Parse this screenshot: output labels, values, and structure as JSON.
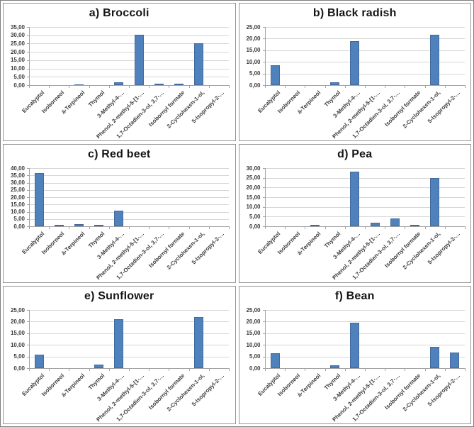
{
  "figure_title": "Volatile compound bar charts by plant species",
  "colors": {
    "bar": "#4f81bd",
    "bar_border": "#44699c",
    "gridline": "#d6d6d6",
    "axis": "#a3a3a3",
    "panel_border": "#969696",
    "outer_border": "#7f7f7f",
    "title_text": "#151515",
    "tick_label_text": "#3d3d3d"
  },
  "chart_data": [
    {
      "type": "bar",
      "panel": "a",
      "title": "a) Broccoli",
      "categories": [
        "Eucalyptol",
        "Isoborneol",
        "á-Terpineol",
        "Thymol",
        "3-Methyl-4-…",
        "Phenol, 2-methyl-5-[1-…",
        "1,7-Octadien-3-ol, 3,7-…",
        "Isobornyl formate",
        "2-Cyclohexen-1-ol,",
        "5-Isopropyl-2-…"
      ],
      "values": [
        0,
        0,
        0.6,
        0,
        1.6,
        30.2,
        0.9,
        0.7,
        25.2,
        0
      ],
      "ylim": [
        0,
        35
      ],
      "ytick_step": 5,
      "yticklabels": [
        "0,00",
        "5,00",
        "10,00",
        "15,00",
        "20,00",
        "25,00",
        "30,00",
        "35,00"
      ],
      "grid": "horizontal",
      "legend": "none"
    },
    {
      "type": "bar",
      "panel": "b",
      "title": "b) Black radish",
      "categories": [
        "Eucalyptol",
        "Isoborneol",
        "á-Terpineol",
        "Thymol",
        "3-Methyl-4-…",
        "Phenol, 2-methyl-5-[1-…",
        "1,7-Octadien-3-ol, 3,7-…",
        "Isobornyl formate",
        "2-Cyclohexen-1-ol,",
        "5-Isopropyl-2-…"
      ],
      "values": [
        8.5,
        0,
        0,
        1.3,
        19.0,
        0,
        0,
        0,
        21.5,
        0
      ],
      "ylim": [
        0,
        25
      ],
      "ytick_step": 5,
      "yticklabels": [
        "0,00",
        "5,00",
        "10,00",
        "15,00",
        "20,00",
        "25,00"
      ],
      "grid": "horizontal",
      "legend": "none"
    },
    {
      "type": "bar",
      "panel": "c",
      "title": "c) Red beet",
      "categories": [
        "Eucalyptol",
        "Isoborneol",
        "á-Terpineol",
        "Thymol",
        "3-Methyl-4-…",
        "Phenol, 2-methyl-5-[1-…",
        "1,7-Octadien-3-ol, 3,7-…",
        "Isobornyl formate",
        "2-Cyclohexen-1-ol,",
        "5-Isopropyl-2-…"
      ],
      "values": [
        36.8,
        1.2,
        1.4,
        1.0,
        10.8,
        0,
        0,
        0,
        0,
        0
      ],
      "ylim": [
        0,
        40
      ],
      "ytick_step": 5,
      "yticklabels": [
        "0,00",
        "5,00",
        "10,00",
        "15,00",
        "20,00",
        "25,00",
        "30,00",
        "35,00",
        "40,00"
      ],
      "grid": "horizontal",
      "legend": "none"
    },
    {
      "type": "bar",
      "panel": "d",
      "title": "d) Pea",
      "categories": [
        "Eucalyptol",
        "Isoborneol",
        "á-Terpineol",
        "Thymol",
        "3-Methyl-4-…",
        "Phenol, 2-methyl-5-[1-…",
        "1,7-Octadien-3-ol, 3,7-…",
        "Isobornyl formate",
        "2-Cyclohexen-1-ol,",
        "5-Isopropyl-2-…"
      ],
      "values": [
        0,
        0,
        0.7,
        0,
        28.1,
        1.7,
        4.0,
        0.7,
        24.8,
        0
      ],
      "ylim": [
        0,
        30
      ],
      "ytick_step": 5,
      "yticklabels": [
        "0,00",
        "5,00",
        "10,00",
        "15,00",
        "20,00",
        "25,00",
        "30,00"
      ],
      "grid": "horizontal",
      "legend": "none"
    },
    {
      "type": "bar",
      "panel": "e",
      "title": "e) Sunflower",
      "categories": [
        "Eucalyptol",
        "Isoborneol",
        "á-Terpineol",
        "Thymol",
        "3-Methyl-4-…",
        "Phenol, 2-methyl-5-[1-…",
        "1,7-Octadien-3-ol, 3,7-…",
        "Isobornyl formate",
        "2-Cyclohexen-1-ol,",
        "5-Isopropyl-2-…"
      ],
      "values": [
        5.7,
        0,
        0,
        1.5,
        21.0,
        0,
        0,
        0,
        22.0,
        0
      ],
      "ylim": [
        0,
        25
      ],
      "ytick_step": 5,
      "yticklabels": [
        "0,00",
        "5,00",
        "10,00",
        "15,00",
        "20,00",
        "25,00"
      ],
      "grid": "horizontal",
      "legend": "none"
    },
    {
      "type": "bar",
      "panel": "f",
      "title": "f) Bean",
      "categories": [
        "Eucalyptol",
        "Isoborneol",
        "á-Terpineol",
        "Thymol",
        "3-Methyl-4-…",
        "Phenol, 2-methyl-5-[1-…",
        "1,7-Octadien-3-ol, 3,7-…",
        "Isobornyl formate",
        "2-Cyclohexen-1-ol,",
        "5-Isopropyl-2-…"
      ],
      "values": [
        6.3,
        0,
        0,
        1.1,
        19.5,
        0,
        0,
        0,
        9.2,
        6.6
      ],
      "ylim": [
        0,
        25
      ],
      "ytick_step": 5,
      "yticklabels": [
        "0,00",
        "5,00",
        "10,00",
        "15,00",
        "20,00",
        "25,00"
      ],
      "grid": "horizontal",
      "legend": "none"
    }
  ]
}
